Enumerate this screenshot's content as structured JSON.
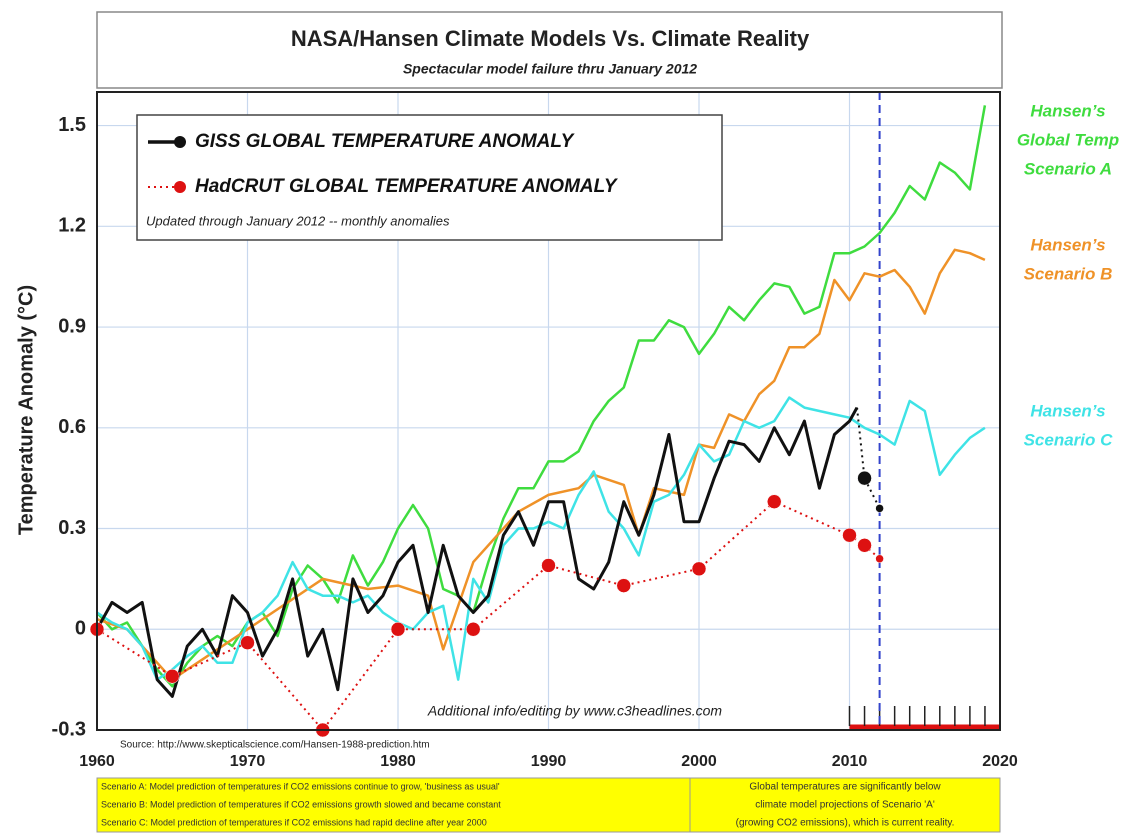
{
  "chart_data": {
    "type": "line",
    "title": "NASA/Hansen Climate Models Vs. Climate Reality",
    "subtitle": "Spectacular model failure thru January 2012",
    "y_label": "Temperature Anomaly (°C)",
    "xlim": [
      1960,
      2020
    ],
    "xticks": [
      1960,
      1970,
      1980,
      1990,
      2000,
      2010,
      2020
    ],
    "ylim": [
      -0.3,
      1.6
    ],
    "yticks": [
      -0.3,
      0,
      0.3,
      0.6,
      0.9,
      1.2,
      1.5
    ],
    "grid": true,
    "vline": 2012,
    "highlight_range": [
      2010,
      2020
    ],
    "legend_note": "Updated through January 2012  -- monthly anomalies",
    "series": [
      {
        "name": "Hansen's Global Temp Scenario A",
        "label_lines": [
          "Hansen’s",
          "Global Temp",
          "Scenario A"
        ],
        "color": "#3fdc3f",
        "x": [
          1960,
          1961,
          1962,
          1963,
          1964,
          1965,
          1966,
          1967,
          1968,
          1969,
          1970,
          1971,
          1972,
          1973,
          1974,
          1975,
          1976,
          1977,
          1978,
          1979,
          1980,
          1981,
          1982,
          1983,
          1984,
          1985,
          1986,
          1987,
          1988,
          1989,
          1990,
          1991,
          1992,
          1993,
          1994,
          1995,
          1996,
          1997,
          1998,
          1999,
          2000,
          2001,
          2002,
          2003,
          2004,
          2005,
          2006,
          2007,
          2008,
          2009,
          2010,
          2011,
          2012,
          2013,
          2014,
          2015,
          2016,
          2017,
          2018,
          2019
        ],
        "values": [
          0.05,
          0.0,
          0.02,
          -0.05,
          -0.12,
          -0.17,
          -0.1,
          -0.05,
          -0.02,
          -0.05,
          0.02,
          0.05,
          -0.02,
          0.12,
          0.19,
          0.15,
          0.08,
          0.22,
          0.13,
          0.2,
          0.3,
          0.37,
          0.3,
          0.12,
          0.1,
          0.05,
          0.2,
          0.33,
          0.42,
          0.42,
          0.5,
          0.5,
          0.53,
          0.62,
          0.68,
          0.72,
          0.86,
          0.86,
          0.92,
          0.9,
          0.82,
          0.88,
          0.96,
          0.92,
          0.98,
          1.03,
          1.02,
          0.94,
          0.96,
          1.12,
          1.12,
          1.14,
          1.18,
          1.24,
          1.32,
          1.28,
          1.39,
          1.36,
          1.31,
          1.56
        ]
      },
      {
        "name": "Hansen's Scenario B",
        "label_lines": [
          "Hansen’s",
          "Scenario B"
        ],
        "color": "#ef9228",
        "x": [
          1960,
          1962,
          1965,
          1970,
          1975,
          1978,
          1980,
          1982,
          1983,
          1985,
          1987,
          1988,
          1990,
          1992,
          1993,
          1995,
          1996,
          1997,
          1999,
          2000,
          2001,
          2002,
          2003,
          2004,
          2005,
          2006,
          2007,
          2008,
          2009,
          2010,
          2011,
          2012,
          2013,
          2014,
          2015,
          2016,
          2017,
          2018,
          2019
        ],
        "values": [
          0.03,
          0.0,
          -0.15,
          0.0,
          0.15,
          0.12,
          0.13,
          0.1,
          -0.06,
          0.2,
          0.3,
          0.35,
          0.4,
          0.42,
          0.46,
          0.43,
          0.28,
          0.42,
          0.4,
          0.55,
          0.54,
          0.64,
          0.62,
          0.7,
          0.74,
          0.84,
          0.84,
          0.88,
          1.04,
          0.98,
          1.06,
          1.05,
          1.07,
          1.02,
          0.94,
          1.06,
          1.13,
          1.12,
          1.1
        ]
      },
      {
        "name": "Hansen's Scenario C",
        "label_lines": [
          "Hansen’s",
          "Scenario C"
        ],
        "color": "#3fe3e6",
        "x": [
          1960,
          1961,
          1962,
          1963,
          1964,
          1965,
          1966,
          1967,
          1968,
          1969,
          1970,
          1971,
          1972,
          1973,
          1974,
          1975,
          1976,
          1977,
          1978,
          1979,
          1980,
          1981,
          1982,
          1983,
          1984,
          1985,
          1986,
          1987,
          1988,
          1989,
          1990,
          1991,
          1992,
          1993,
          1994,
          1995,
          1996,
          1997,
          1998,
          1999,
          2000,
          2001,
          2002,
          2003,
          2004,
          2005,
          2006,
          2007,
          2008,
          2009,
          2010,
          2011,
          2012,
          2013,
          2014,
          2015,
          2016,
          2017,
          2018,
          2019
        ],
        "values": [
          0.05,
          0.02,
          0.0,
          -0.05,
          -0.15,
          -0.12,
          -0.08,
          -0.05,
          -0.1,
          -0.1,
          0.02,
          0.05,
          0.1,
          0.2,
          0.12,
          0.1,
          0.1,
          0.08,
          0.1,
          0.05,
          0.02,
          0.0,
          0.05,
          0.07,
          -0.15,
          0.15,
          0.08,
          0.25,
          0.3,
          0.3,
          0.32,
          0.3,
          0.4,
          0.47,
          0.35,
          0.3,
          0.22,
          0.38,
          0.4,
          0.46,
          0.55,
          0.5,
          0.52,
          0.62,
          0.6,
          0.62,
          0.69,
          0.66,
          0.65,
          0.64,
          0.63,
          0.6,
          0.58,
          0.55,
          0.68,
          0.65,
          0.46,
          0.52,
          0.57,
          0.6
        ]
      },
      {
        "name": "GISS GLOBAL TEMPERATURE ANOMALY",
        "color": "#111111",
        "width": 3,
        "x": [
          1960,
          1961,
          1962,
          1963,
          1964,
          1965,
          1966,
          1967,
          1968,
          1969,
          1970,
          1971,
          1972,
          1973,
          1974,
          1975,
          1976,
          1977,
          1978,
          1979,
          1980,
          1981,
          1982,
          1983,
          1984,
          1985,
          1986,
          1987,
          1988,
          1989,
          1990,
          1991,
          1992,
          1993,
          1994,
          1995,
          1996,
          1997,
          1998,
          1999,
          2000,
          2001,
          2002,
          2003,
          2004,
          2005,
          2006,
          2007,
          2008,
          2009,
          2010,
          2010.5
        ],
        "values": [
          0.0,
          0.08,
          0.05,
          0.08,
          -0.15,
          -0.2,
          -0.05,
          0.0,
          -0.08,
          0.1,
          0.05,
          -0.08,
          0.0,
          0.15,
          -0.08,
          0.0,
          -0.18,
          0.15,
          0.05,
          0.1,
          0.2,
          0.25,
          0.05,
          0.25,
          0.1,
          0.05,
          0.1,
          0.28,
          0.35,
          0.25,
          0.38,
          0.38,
          0.15,
          0.12,
          0.2,
          0.38,
          0.28,
          0.4,
          0.58,
          0.32,
          0.32,
          0.45,
          0.56,
          0.55,
          0.5,
          0.6,
          0.52,
          0.62,
          0.42,
          0.58,
          0.62,
          0.66
        ]
      },
      {
        "color": "#111111",
        "dash": true,
        "markers": true,
        "x": [
          2010.5,
          2011,
          2012
        ],
        "values": [
          0.66,
          0.45,
          0.36
        ]
      },
      {
        "name": "HadCRUT  GLOBAL TEMPERATURE ANOMALY",
        "color": "#dd1111",
        "dash": true,
        "markers": true,
        "x": [
          1960,
          1965,
          1970,
          1975,
          1980,
          1985,
          1990,
          1995,
          2000,
          2005,
          2010,
          2011,
          2012
        ],
        "values": [
          0.0,
          -0.14,
          -0.04,
          -0.3,
          0.0,
          0.0,
          0.19,
          0.13,
          0.18,
          0.38,
          0.28,
          0.25,
          0.21
        ]
      }
    ],
    "credit": "Additional info/editing by www.c3headlines.com",
    "source": "Source: http://www.skepticalscience.com/Hansen-1988-prediction.htm",
    "notes_left": [
      "Scenario A: Model prediction of temperatures if CO2 emissions continue to grow, 'business as usual'",
      "Scenario B: Model prediction of temperatures if CO2 emissions growth slowed and became constant",
      "Scenario C: Model prediction of temperatures if CO2 emissions had rapid decline after year 2000"
    ],
    "notes_right": [
      "Global temperatures are significantly below",
      "climate model projections of Scenario 'A'",
      "(growing CO2 emissions), which is current reality."
    ]
  }
}
